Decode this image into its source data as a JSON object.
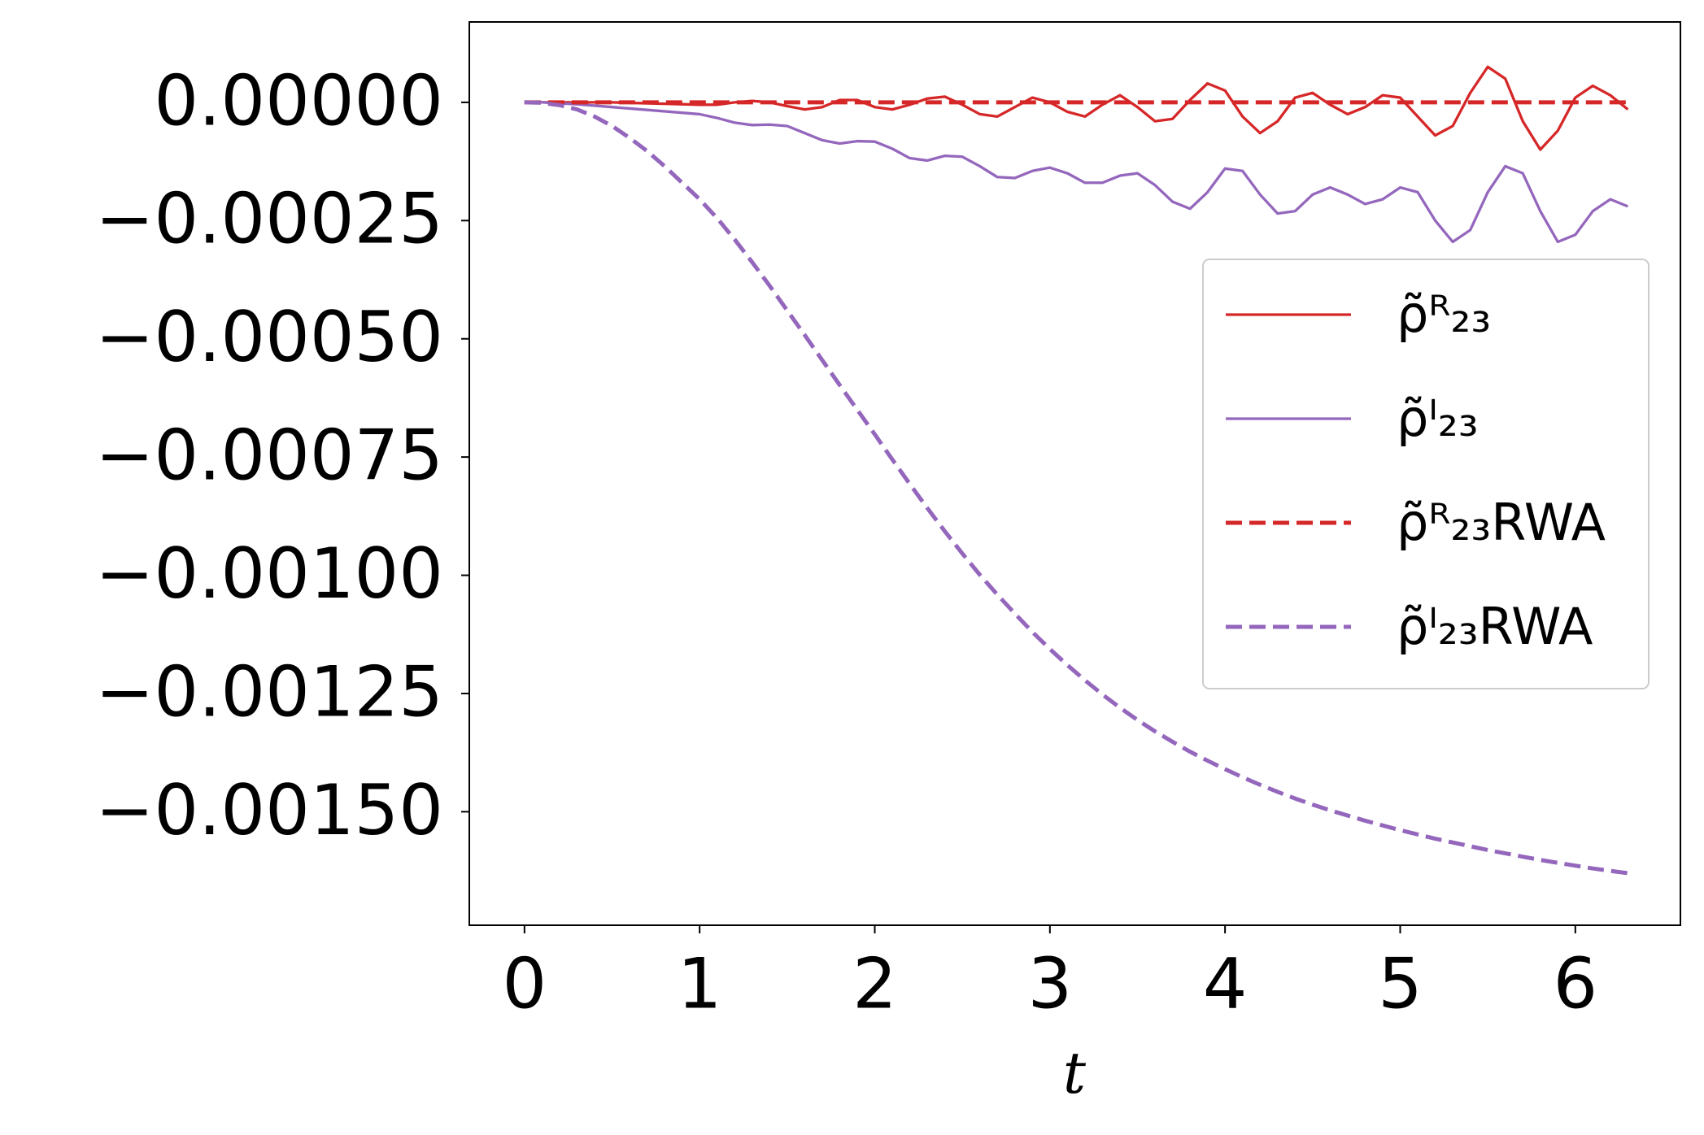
{
  "chart_data": {
    "type": "line",
    "x_label": "t",
    "x": [
      0,
      0.1,
      0.2,
      0.3,
      0.4,
      0.5,
      0.6,
      0.7,
      0.8,
      0.9,
      1.0,
      1.1,
      1.2,
      1.3,
      1.4,
      1.5,
      1.6,
      1.7,
      1.8,
      1.9,
      2.0,
      2.1,
      2.2,
      2.3,
      2.4,
      2.5,
      2.6,
      2.7,
      2.8,
      2.9,
      3.0,
      3.1,
      3.2,
      3.3,
      3.4,
      3.5,
      3.6,
      3.7,
      3.8,
      3.9,
      4.0,
      4.1,
      4.2,
      4.3,
      4.4,
      4.5,
      4.6,
      4.7,
      4.8,
      4.9,
      5.0,
      5.1,
      5.2,
      5.3,
      5.4,
      5.5,
      5.6,
      5.7,
      5.8,
      5.9,
      6.0,
      6.1,
      6.2,
      6.3
    ],
    "series": [
      {
        "name": "ρ̃ᴿ₂₃",
        "color": "#d62728",
        "dashed": false,
        "values": [
          0,
          0,
          0,
          0,
          0,
          0,
          -1e-06,
          -2e-06,
          -3e-06,
          -4e-06,
          -5e-06,
          -5e-06,
          0,
          3e-06,
          0,
          -8e-06,
          -1.5e-05,
          -1e-05,
          5e-06,
          5e-06,
          -1e-05,
          -1.5e-05,
          -5e-06,
          8e-06,
          1.2e-05,
          -5e-06,
          -2.5e-05,
          -3e-05,
          -1e-05,
          1e-05,
          0,
          -2e-05,
          -3e-05,
          -5e-06,
          1.5e-05,
          -1e-05,
          -4e-05,
          -3.5e-05,
          5e-06,
          4e-05,
          2.5e-05,
          -3e-05,
          -6.5e-05,
          -4e-05,
          1e-05,
          2e-05,
          -5e-06,
          -2.5e-05,
          -1e-05,
          1.5e-05,
          1e-05,
          -3e-05,
          -7e-05,
          -5e-05,
          2e-05,
          7.5e-05,
          5e-05,
          -4e-05,
          -0.0001,
          -6e-05,
          1e-05,
          3.5e-05,
          1.5e-05,
          -1.5e-05
        ]
      },
      {
        "name": "ρ̃ᴵ₂₃",
        "color": "#9467bd",
        "dashed": false,
        "values": [
          0,
          0,
          -2e-06,
          -4e-06,
          -7e-06,
          -1e-05,
          -1.3e-05,
          -1.6e-05,
          -1.9e-05,
          -2.2e-05,
          -2.5e-05,
          -3.3e-05,
          -4.3e-05,
          -4.8e-05,
          -4.7e-05,
          -5e-05,
          -6.5e-05,
          -8e-05,
          -8.7e-05,
          -8.2e-05,
          -8.3e-05,
          -9.8e-05,
          -0.000118,
          -0.000123,
          -0.000113,
          -0.000115,
          -0.000135,
          -0.000158,
          -0.00016,
          -0.000145,
          -0.000138,
          -0.00015,
          -0.00017,
          -0.00017,
          -0.000155,
          -0.00015,
          -0.000175,
          -0.00021,
          -0.000225,
          -0.00019,
          -0.00014,
          -0.000145,
          -0.000195,
          -0.000235,
          -0.00023,
          -0.000195,
          -0.00018,
          -0.000195,
          -0.000215,
          -0.000205,
          -0.00018,
          -0.00019,
          -0.00025,
          -0.000295,
          -0.00027,
          -0.00019,
          -0.000135,
          -0.00015,
          -0.00023,
          -0.000295,
          -0.00028,
          -0.00023,
          -0.000205,
          -0.00022
        ]
      },
      {
        "name": "ρ̃ᴿ₂₃RWA",
        "color": "#d62728",
        "dashed": true,
        "values": [
          0,
          0,
          0,
          0,
          0,
          0,
          0,
          0,
          0,
          0,
          0,
          0,
          0,
          0,
          0,
          0,
          0,
          0,
          0,
          0,
          0,
          0,
          0,
          0,
          0,
          0,
          0,
          0,
          0,
          0,
          0,
          0,
          0,
          0,
          0,
          0,
          0,
          0,
          0,
          0,
          0,
          0,
          0,
          0,
          0,
          0,
          0,
          0,
          0,
          0,
          0,
          0,
          0,
          0,
          0,
          0,
          0,
          0,
          0,
          0,
          0,
          0,
          0,
          0
        ]
      },
      {
        "name": "ρ̃ᴵ₂₃RWA",
        "color": "#9467bd",
        "dashed": true,
        "values": [
          0,
          -1e-06,
          -6e-06,
          -1.5e-05,
          -3e-05,
          -5e-05,
          -7.5e-05,
          -0.000103,
          -0.000135,
          -0.00017,
          -0.000205,
          -0.000245,
          -0.00029,
          -0.000338,
          -0.000388,
          -0.00044,
          -0.000492,
          -0.000545,
          -0.000598,
          -0.00065,
          -0.000702,
          -0.000755,
          -0.000807,
          -0.000858,
          -0.000907,
          -0.000954,
          -0.000999,
          -0.001041,
          -0.001081,
          -0.00112,
          -0.001156,
          -0.00119,
          -0.001222,
          -0.001252,
          -0.00128,
          -0.001306,
          -0.00133,
          -0.001352,
          -0.001373,
          -0.001392,
          -0.00141,
          -0.001427,
          -0.001443,
          -0.001458,
          -0.001472,
          -0.001485,
          -0.001497,
          -0.001508,
          -0.001519,
          -0.001529,
          -0.001539,
          -0.001548,
          -0.001557,
          -0.001565,
          -0.001573,
          -0.001581,
          -0.001588,
          -0.001595,
          -0.001602,
          -0.001608,
          -0.001614,
          -0.00162,
          -0.001625,
          -0.00163
        ]
      }
    ],
    "xlim": [
      -0.315,
      6.6
    ],
    "ylim": [
      -0.00174,
      0.00017
    ],
    "xticks": [
      0,
      1,
      2,
      3,
      4,
      5,
      6
    ],
    "yticks": [
      {
        "value": 0,
        "label": "0.00000"
      },
      {
        "value": -0.00025,
        "label": "−0.00025"
      },
      {
        "value": -0.0005,
        "label": "−0.00050"
      },
      {
        "value": -0.00075,
        "label": "−0.00075"
      },
      {
        "value": -0.001,
        "label": "−0.00100"
      },
      {
        "value": -0.00125,
        "label": "−0.00125"
      },
      {
        "value": -0.0015,
        "label": "−0.00150"
      }
    ],
    "grid": false,
    "legend": "right"
  }
}
